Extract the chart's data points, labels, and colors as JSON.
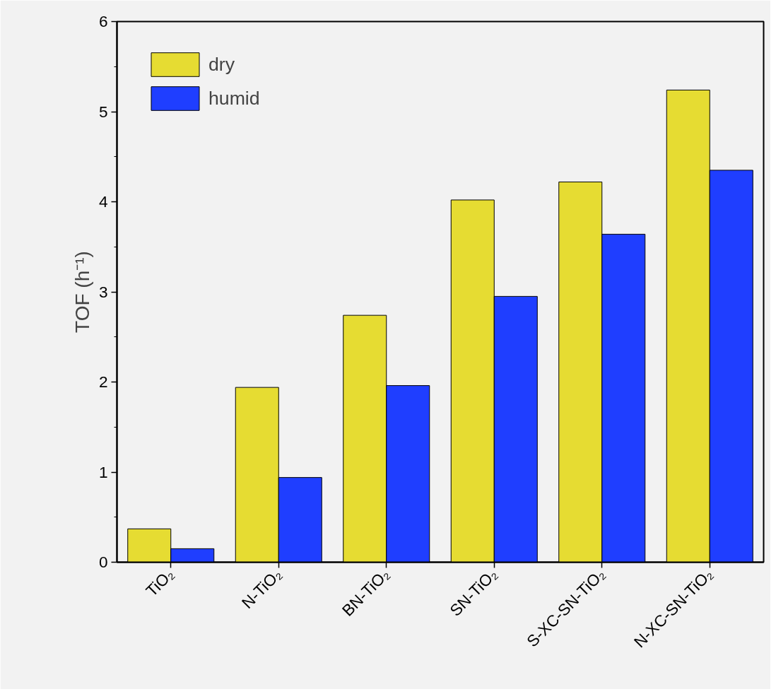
{
  "chart_data": {
    "type": "bar",
    "ylabel": "TOF (h⁻¹)",
    "categories": [
      "TiO₂",
      "N-TiO₂",
      "BN-TiO₂",
      "SN-TiO₂",
      "S-XC-SN-TiO₂",
      "N-XC-SN-TiO₂"
    ],
    "series": [
      {
        "name": "dry",
        "color": "#e6dc32",
        "values": [
          0.37,
          1.94,
          2.74,
          4.02,
          4.22,
          5.24
        ]
      },
      {
        "name": "humid",
        "color": "#1f3eff",
        "values": [
          0.15,
          0.94,
          1.96,
          2.95,
          3.64,
          4.35
        ]
      }
    ],
    "ylim": [
      0,
      6
    ],
    "yticks": [
      0,
      {
        "value": 0.5,
        "label": null
      },
      1,
      {
        "value": 1.5,
        "label": null
      },
      2,
      {
        "value": 2.5,
        "label": null
      },
      3,
      {
        "value": 3.5,
        "label": null
      },
      4,
      {
        "value": 4.5,
        "label": null
      },
      5,
      {
        "value": 5.5,
        "label": null
      },
      6
    ],
    "grid": false,
    "legend": "top left"
  }
}
